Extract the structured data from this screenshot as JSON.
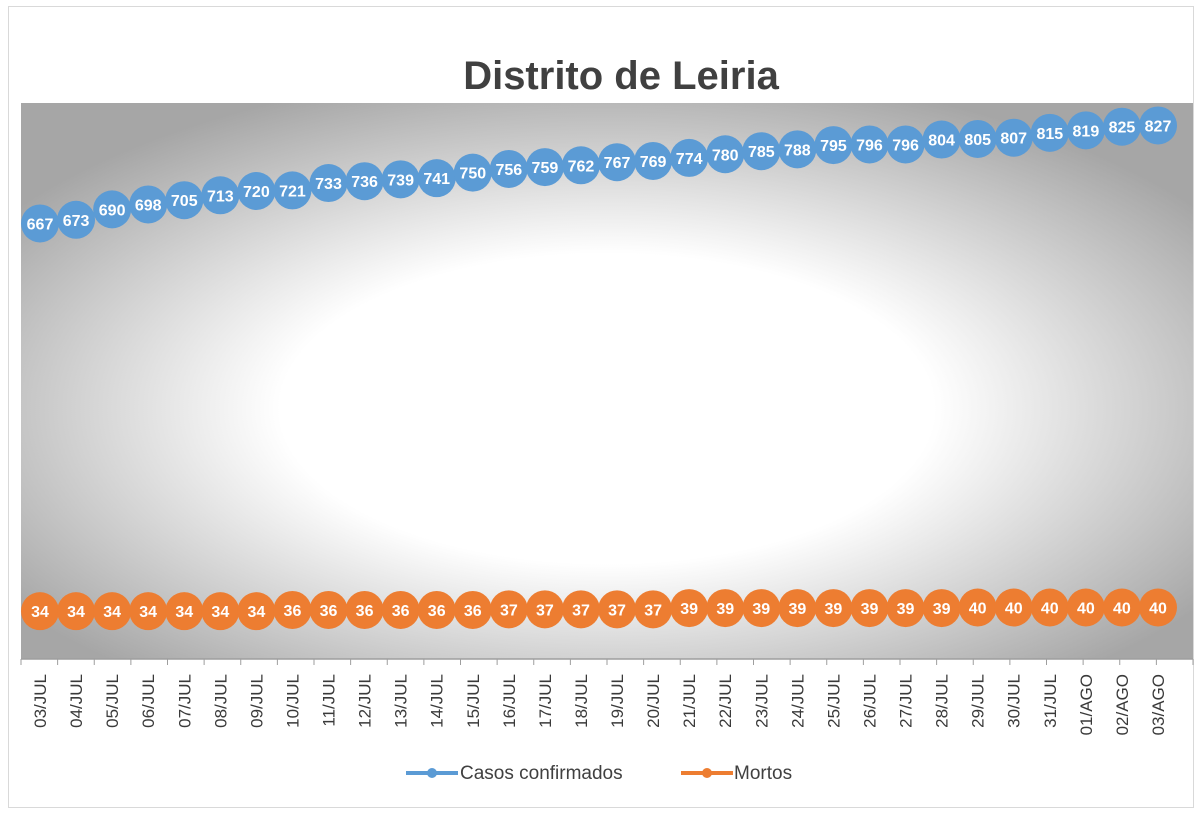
{
  "chart_data": {
    "type": "line",
    "title": "Distrito de Leiria",
    "xlabel": "",
    "ylabel": "",
    "grid": false,
    "legend_position": "bottom",
    "categories": [
      "03/JUL",
      "04/JUL",
      "05/JUL",
      "06/JUL",
      "07/JUL",
      "08/JUL",
      "09/JUL",
      "10/JUL",
      "11/JUL",
      "12/JUL",
      "13/JUL",
      "14/JUL",
      "15/JUL",
      "16/JUL",
      "17/JUL",
      "18/JUL",
      "19/JUL",
      "20/JUL",
      "21/JUL",
      "22/JUL",
      "23/JUL",
      "24/JUL",
      "25/JUL",
      "26/JUL",
      "27/JUL",
      "28/JUL",
      "29/JUL",
      "30/JUL",
      "31/JUL",
      "01/AGO",
      "02/AGO",
      "03/AGO"
    ],
    "series": [
      {
        "name": "Casos confirmados",
        "color": "#5b9bd5",
        "values": [
          667,
          673,
          690,
          698,
          705,
          713,
          720,
          721,
          733,
          736,
          739,
          741,
          750,
          756,
          759,
          762,
          767,
          769,
          774,
          780,
          785,
          788,
          795,
          796,
          796,
          804,
          805,
          807,
          815,
          819,
          825,
          827
        ]
      },
      {
        "name": "Mortos",
        "color": "#ed7d31",
        "values": [
          34,
          34,
          34,
          34,
          34,
          34,
          34,
          36,
          36,
          36,
          36,
          36,
          36,
          37,
          37,
          37,
          37,
          37,
          39,
          39,
          39,
          39,
          39,
          39,
          39,
          39,
          40,
          40,
          40,
          40,
          40,
          40
        ]
      }
    ]
  }
}
